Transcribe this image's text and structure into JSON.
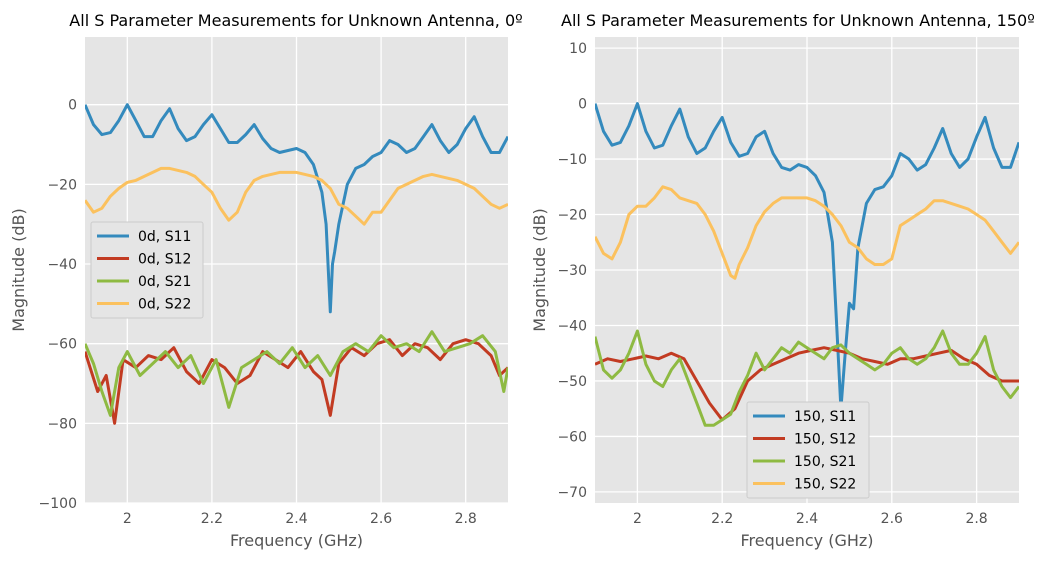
{
  "chart_data": [
    {
      "type": "line",
      "title": "All S Parameter Measurements for Unknown Antenna, 0º",
      "xlabel": "Frequency (GHz)",
      "ylabel": "Magnitude (dB)",
      "xlim": [
        1.9,
        2.9
      ],
      "ylim": [
        -100,
        17
      ],
      "xticks": [
        2.0,
        2.2,
        2.4,
        2.6,
        2.8
      ],
      "xtick_labels": [
        "2",
        "2.2",
        "2.4",
        "2.6",
        "2.8"
      ],
      "yticks": [
        0,
        -20,
        -40,
        -60,
        -80,
        -100
      ],
      "ytick_labels": [
        "0",
        "−20",
        "−40",
        "−60",
        "−80",
        "−100"
      ],
      "grid": true,
      "legend_position": "center-left",
      "series": [
        {
          "name": "0d, S11",
          "color": "#348abd",
          "x": [
            1.9,
            1.92,
            1.94,
            1.96,
            1.98,
            2.0,
            2.02,
            2.04,
            2.06,
            2.08,
            2.1,
            2.12,
            2.14,
            2.16,
            2.18,
            2.2,
            2.22,
            2.24,
            2.26,
            2.28,
            2.3,
            2.32,
            2.34,
            2.36,
            2.38,
            2.4,
            2.42,
            2.44,
            2.46,
            2.47,
            2.48,
            2.485,
            2.49,
            2.5,
            2.52,
            2.54,
            2.56,
            2.58,
            2.6,
            2.62,
            2.64,
            2.66,
            2.68,
            2.7,
            2.72,
            2.74,
            2.76,
            2.78,
            2.8,
            2.82,
            2.84,
            2.86,
            2.88,
            2.9
          ],
          "y": [
            0,
            -5,
            -7.5,
            -7,
            -4,
            0,
            -4,
            -8,
            -8,
            -4,
            -1,
            -6,
            -9,
            -8,
            -5,
            -2.5,
            -6,
            -9.5,
            -9.5,
            -7.5,
            -5,
            -8.5,
            -11,
            -12,
            -11.5,
            -11,
            -12,
            -15,
            -22,
            -30,
            -52,
            -40,
            -37,
            -30,
            -20,
            -16,
            -15,
            -13,
            -12,
            -9,
            -10,
            -12,
            -11,
            -8,
            -5,
            -9,
            -12,
            -10,
            -6,
            -3,
            -8,
            -12,
            -12,
            -8
          ]
        },
        {
          "name": "0d, S12",
          "color": "#c23b22",
          "x": [
            1.9,
            1.93,
            1.95,
            1.97,
            1.99,
            2.02,
            2.05,
            2.08,
            2.11,
            2.14,
            2.17,
            2.2,
            2.23,
            2.26,
            2.29,
            2.32,
            2.35,
            2.38,
            2.41,
            2.44,
            2.46,
            2.48,
            2.5,
            2.53,
            2.56,
            2.59,
            2.62,
            2.65,
            2.68,
            2.71,
            2.74,
            2.77,
            2.8,
            2.83,
            2.86,
            2.88,
            2.9
          ],
          "y": [
            -62,
            -72,
            -68,
            -80,
            -64,
            -66,
            -63,
            -64,
            -61,
            -67,
            -70,
            -64,
            -66,
            -70,
            -68,
            -62,
            -64,
            -66,
            -62,
            -67,
            -69,
            -78,
            -65,
            -61,
            -63,
            -60,
            -59,
            -63,
            -60,
            -61,
            -64,
            -60,
            -59,
            -60,
            -63,
            -68,
            -66
          ]
        },
        {
          "name": "0d, S21",
          "color": "#8eba42",
          "x": [
            1.9,
            1.92,
            1.94,
            1.96,
            1.98,
            2.0,
            2.03,
            2.06,
            2.09,
            2.12,
            2.15,
            2.18,
            2.21,
            2.24,
            2.27,
            2.3,
            2.33,
            2.36,
            2.39,
            2.42,
            2.45,
            2.48,
            2.51,
            2.54,
            2.57,
            2.6,
            2.63,
            2.66,
            2.69,
            2.72,
            2.75,
            2.78,
            2.81,
            2.84,
            2.87,
            2.89,
            2.9
          ],
          "y": [
            -60,
            -65,
            -72,
            -78,
            -66,
            -62,
            -68,
            -65,
            -62,
            -66,
            -63,
            -70,
            -64,
            -76,
            -66,
            -64,
            -62,
            -65,
            -61,
            -66,
            -63,
            -68,
            -62,
            -60,
            -62,
            -58,
            -61,
            -60,
            -62,
            -57,
            -62,
            -61,
            -60,
            -58,
            -62,
            -72,
            -66
          ]
        },
        {
          "name": "0d, S22",
          "color": "#fbc15e",
          "x": [
            1.9,
            1.92,
            1.94,
            1.96,
            1.98,
            2.0,
            2.02,
            2.04,
            2.06,
            2.08,
            2.1,
            2.12,
            2.14,
            2.16,
            2.18,
            2.2,
            2.22,
            2.24,
            2.26,
            2.28,
            2.3,
            2.32,
            2.34,
            2.36,
            2.38,
            2.4,
            2.42,
            2.44,
            2.46,
            2.48,
            2.5,
            2.52,
            2.54,
            2.56,
            2.58,
            2.6,
            2.62,
            2.64,
            2.66,
            2.68,
            2.7,
            2.72,
            2.74,
            2.76,
            2.78,
            2.8,
            2.82,
            2.84,
            2.86,
            2.88,
            2.9
          ],
          "y": [
            -24,
            -27,
            -26,
            -23,
            -21,
            -19.5,
            -19,
            -18,
            -17,
            -16,
            -16,
            -16.5,
            -17,
            -18,
            -20,
            -22,
            -26,
            -29,
            -27,
            -22,
            -19,
            -18,
            -17.5,
            -17,
            -17,
            -17,
            -17.5,
            -18,
            -19,
            -21,
            -25,
            -26,
            -28,
            -30,
            -27,
            -27,
            -24,
            -21,
            -20,
            -19,
            -18,
            -17.5,
            -18,
            -18.5,
            -19,
            -20,
            -21,
            -23,
            -25,
            -26,
            -25
          ]
        }
      ]
    },
    {
      "type": "line",
      "title": "All S Parameter Measurements for Unknown Antenna, 150º",
      "xlabel": "Frequency (GHz)",
      "ylabel": "Magnitude (dB)",
      "xlim": [
        1.9,
        2.9
      ],
      "ylim": [
        -72,
        12
      ],
      "xticks": [
        2.0,
        2.2,
        2.4,
        2.6,
        2.8
      ],
      "xtick_labels": [
        "2",
        "2.2",
        "2.4",
        "2.6",
        "2.8"
      ],
      "yticks": [
        10,
        0,
        -10,
        -20,
        -30,
        -40,
        -50,
        -60,
        -70
      ],
      "ytick_labels": [
        "10",
        "0",
        "−10",
        "−20",
        "−30",
        "−40",
        "−50",
        "−60",
        "−70"
      ],
      "grid": true,
      "legend_position": "lower-center",
      "series": [
        {
          "name": "150, S11",
          "color": "#348abd",
          "x": [
            1.9,
            1.92,
            1.94,
            1.96,
            1.98,
            2.0,
            2.02,
            2.04,
            2.06,
            2.08,
            2.1,
            2.12,
            2.14,
            2.16,
            2.18,
            2.2,
            2.22,
            2.24,
            2.26,
            2.28,
            2.3,
            2.32,
            2.34,
            2.36,
            2.38,
            2.4,
            2.42,
            2.44,
            2.46,
            2.47,
            2.48,
            2.49,
            2.5,
            2.51,
            2.52,
            2.54,
            2.56,
            2.58,
            2.6,
            2.62,
            2.64,
            2.66,
            2.68,
            2.7,
            2.72,
            2.74,
            2.76,
            2.78,
            2.8,
            2.82,
            2.84,
            2.86,
            2.88,
            2.9
          ],
          "y": [
            0,
            -5,
            -7.5,
            -7,
            -4,
            0,
            -5,
            -8,
            -7.5,
            -4,
            -1,
            -6,
            -9,
            -8,
            -5,
            -2.5,
            -7,
            -9.5,
            -9,
            -6,
            -5,
            -9,
            -11.5,
            -12,
            -11,
            -11.5,
            -13,
            -16,
            -25,
            -40,
            -55,
            -45,
            -36,
            -37,
            -26,
            -18,
            -15.5,
            -15,
            -13,
            -9,
            -10,
            -12,
            -11,
            -8,
            -4.5,
            -9,
            -11.5,
            -10,
            -6,
            -2.5,
            -8,
            -11.5,
            -11.5,
            -7
          ]
        },
        {
          "name": "150, S12",
          "color": "#c23b22",
          "x": [
            1.9,
            1.93,
            1.96,
            1.99,
            2.02,
            2.05,
            2.08,
            2.11,
            2.14,
            2.17,
            2.2,
            2.23,
            2.26,
            2.29,
            2.32,
            2.35,
            2.38,
            2.41,
            2.44,
            2.47,
            2.5,
            2.53,
            2.56,
            2.59,
            2.62,
            2.65,
            2.68,
            2.71,
            2.74,
            2.77,
            2.8,
            2.83,
            2.86,
            2.9
          ],
          "y": [
            -47,
            -46,
            -46.5,
            -46,
            -45.5,
            -46,
            -45,
            -46,
            -50,
            -54,
            -57,
            -55,
            -50,
            -48,
            -47,
            -46,
            -45,
            -44.5,
            -44,
            -44.5,
            -45,
            -46,
            -46.5,
            -47,
            -46,
            -46,
            -45.5,
            -45,
            -44.5,
            -46,
            -47,
            -49,
            -50,
            -50
          ]
        },
        {
          "name": "150, S21",
          "color": "#8eba42",
          "x": [
            1.9,
            1.92,
            1.94,
            1.96,
            1.98,
            2.0,
            2.02,
            2.04,
            2.06,
            2.08,
            2.1,
            2.12,
            2.14,
            2.16,
            2.18,
            2.2,
            2.22,
            2.24,
            2.26,
            2.28,
            2.3,
            2.32,
            2.34,
            2.36,
            2.38,
            2.4,
            2.42,
            2.44,
            2.46,
            2.48,
            2.5,
            2.52,
            2.54,
            2.56,
            2.58,
            2.6,
            2.62,
            2.64,
            2.66,
            2.68,
            2.7,
            2.72,
            2.74,
            2.76,
            2.78,
            2.8,
            2.82,
            2.84,
            2.86,
            2.88,
            2.9
          ],
          "y": [
            -42,
            -48,
            -49.5,
            -48,
            -45,
            -41,
            -47,
            -50,
            -51,
            -48,
            -46,
            -50,
            -54,
            -58,
            -58,
            -57,
            -56,
            -52,
            -49,
            -45,
            -48,
            -46,
            -44,
            -45,
            -43,
            -44,
            -45,
            -46,
            -44,
            -43.5,
            -45,
            -46,
            -47,
            -48,
            -47,
            -45,
            -44,
            -46,
            -47,
            -46,
            -44,
            -41,
            -45,
            -47,
            -47,
            -45,
            -42,
            -48,
            -51,
            -53,
            -51
          ]
        },
        {
          "name": "150, S22",
          "color": "#fbc15e",
          "x": [
            1.9,
            1.92,
            1.94,
            1.96,
            1.98,
            2.0,
            2.02,
            2.04,
            2.06,
            2.08,
            2.1,
            2.12,
            2.14,
            2.16,
            2.18,
            2.2,
            2.22,
            2.23,
            2.24,
            2.26,
            2.28,
            2.3,
            2.32,
            2.34,
            2.36,
            2.38,
            2.4,
            2.42,
            2.44,
            2.46,
            2.48,
            2.5,
            2.52,
            2.54,
            2.56,
            2.58,
            2.6,
            2.62,
            2.64,
            2.66,
            2.68,
            2.7,
            2.72,
            2.74,
            2.76,
            2.78,
            2.8,
            2.82,
            2.84,
            2.86,
            2.88,
            2.9
          ],
          "y": [
            -24,
            -27,
            -28,
            -25,
            -20,
            -18.5,
            -18.5,
            -17,
            -15,
            -15.5,
            -17,
            -17.5,
            -18,
            -20,
            -23,
            -27,
            -31,
            -31.5,
            -29,
            -26,
            -22,
            -19.5,
            -18,
            -17,
            -17,
            -17,
            -17,
            -17.5,
            -18.5,
            -20,
            -22,
            -25,
            -26,
            -28,
            -29,
            -29,
            -28,
            -22,
            -21,
            -20,
            -19,
            -17.5,
            -17.5,
            -18,
            -18.5,
            -19,
            -20,
            -21,
            -23,
            -25,
            -27,
            -25
          ]
        }
      ]
    }
  ]
}
